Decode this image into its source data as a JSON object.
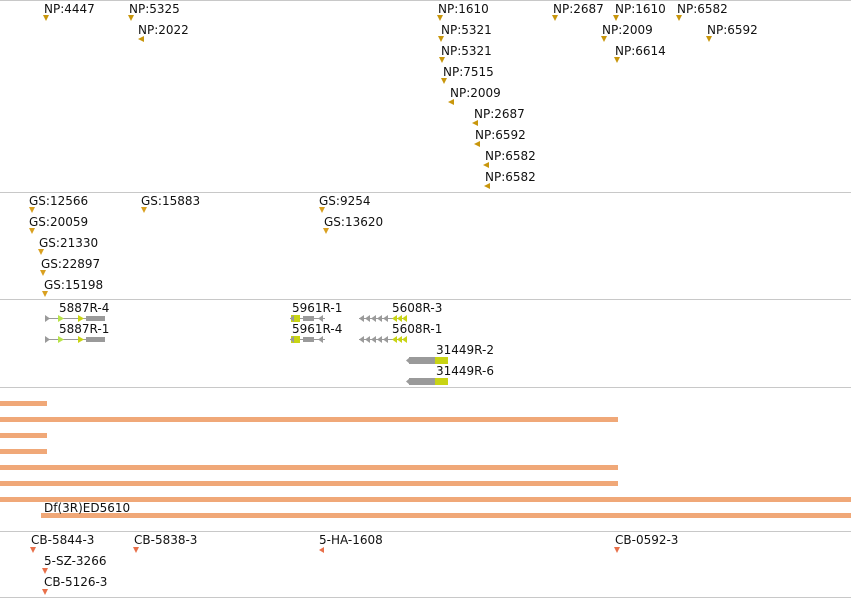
{
  "colors": {
    "track_divider": "#c8c8c8",
    "marker_np": "#c8960c",
    "marker_gs": "#d9a020",
    "marker_cb": "#e8704a",
    "gene_body": "#9a9a9a",
    "gene_exon": "#c8d414",
    "gene_utr": "#b8e34a",
    "deficiency_bar": "#f0a878"
  },
  "tracks": {
    "np": {
      "features": [
        {
          "label": "NP:4447",
          "strand": "down"
        },
        {
          "label": "NP:5325",
          "strand": "down"
        },
        {
          "label": "NP:2022",
          "strand": "left"
        },
        {
          "label": "NP:1610",
          "strand": "down"
        },
        {
          "label": "NP:5321",
          "strand": "down"
        },
        {
          "label": "NP:5321",
          "strand": "down"
        },
        {
          "label": "NP:7515",
          "strand": "down"
        },
        {
          "label": "NP:2009",
          "strand": "left"
        },
        {
          "label": "NP:2687",
          "strand": "left"
        },
        {
          "label": "NP:6592",
          "strand": "left"
        },
        {
          "label": "NP:6582",
          "strand": "left"
        },
        {
          "label": "NP:6582",
          "strand": "left"
        },
        {
          "label": "NP:2687",
          "strand": "down"
        },
        {
          "label": "NP:1610",
          "strand": "down"
        },
        {
          "label": "NP:2009",
          "strand": "down"
        },
        {
          "label": "NP:6614",
          "strand": "down"
        },
        {
          "label": "NP:6582",
          "strand": "down"
        },
        {
          "label": "NP:6592",
          "strand": "down"
        }
      ]
    },
    "gs": {
      "features": [
        {
          "label": "GS:12566"
        },
        {
          "label": "GS:20059"
        },
        {
          "label": "GS:21330"
        },
        {
          "label": "GS:22897"
        },
        {
          "label": "GS:15198"
        },
        {
          "label": "GS:15883"
        },
        {
          "label": "GS:9254"
        },
        {
          "label": "GS:13620"
        }
      ]
    },
    "genes": {
      "features": [
        {
          "label": "5887R-4"
        },
        {
          "label": "5887R-1"
        },
        {
          "label": "5961R-1"
        },
        {
          "label": "5961R-4"
        },
        {
          "label": "5608R-3"
        },
        {
          "label": "5608R-1"
        },
        {
          "label": "31449R-2"
        },
        {
          "label": "31449R-6"
        }
      ]
    },
    "deficiencies": {
      "label": "Df(3R)ED5610"
    },
    "cb": {
      "features": [
        {
          "label": "CB-5844-3"
        },
        {
          "label": "5-SZ-3266"
        },
        {
          "label": "CB-5126-3"
        },
        {
          "label": "CB-5838-3"
        },
        {
          "label": "5-HA-1608"
        },
        {
          "label": "CB-0592-3"
        }
      ]
    }
  }
}
